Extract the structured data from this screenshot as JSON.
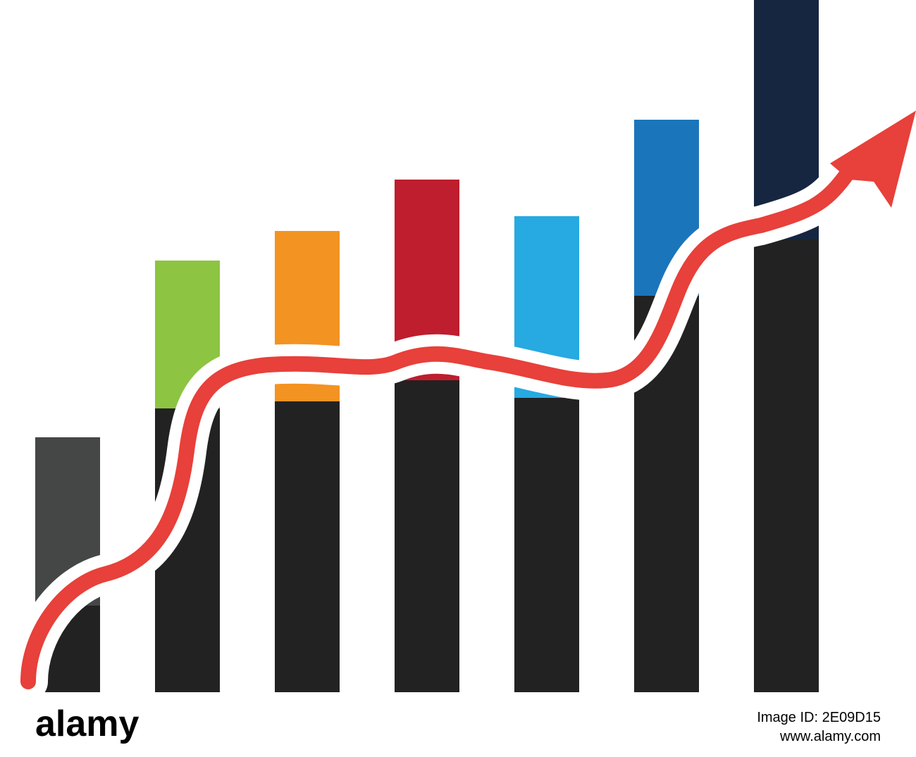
{
  "footer": {
    "logo": "alamy",
    "image_id": "Image ID: 2E09D15",
    "url": "www.alamy.com"
  }
}
